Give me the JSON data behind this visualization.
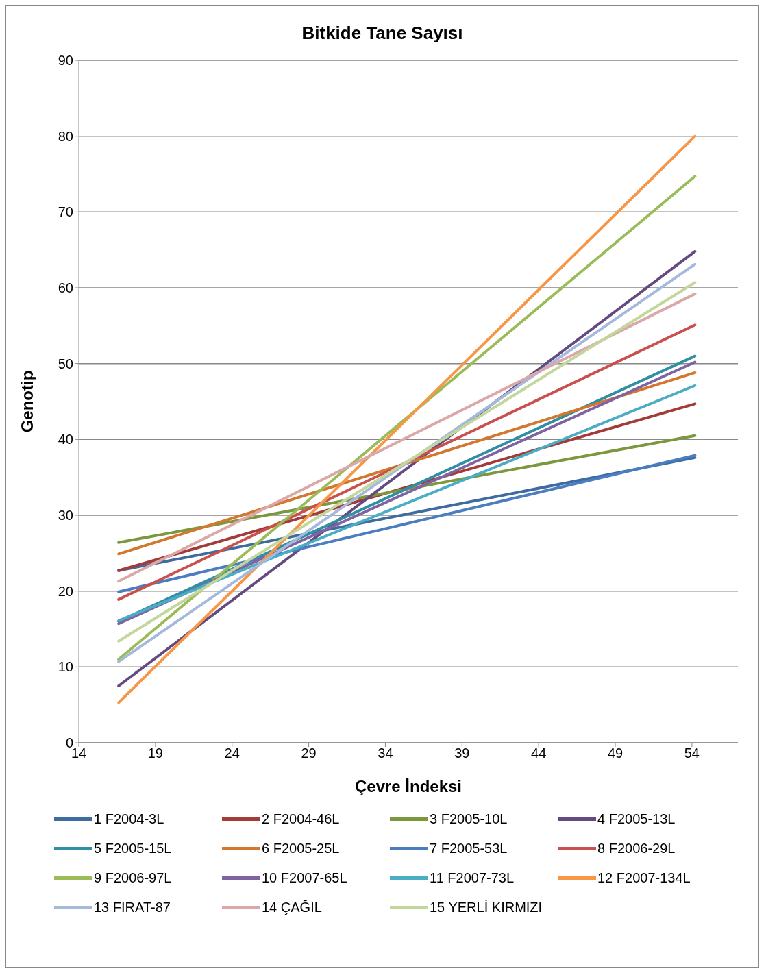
{
  "chart_data": {
    "type": "line",
    "title": "Bitkide Tane Sayısı",
    "xlabel": "Çevre İndeksi",
    "ylabel": "Genotip",
    "x": [
      16.6,
      54.2
    ],
    "xlim": [
      14,
      57
    ],
    "xticks": [
      14,
      19,
      24,
      29,
      34,
      39,
      44,
      49,
      54
    ],
    "ylim": [
      0,
      90
    ],
    "yticks": [
      0,
      10,
      20,
      30,
      40,
      50,
      60,
      70,
      80,
      90
    ],
    "grid": "y",
    "legend": "bottom",
    "marker": "none",
    "line_style": "solid",
    "series": [
      {
        "name": "1 F2004-3L",
        "color": "#3e6ba0",
        "values": [
          22.7,
          37.6
        ]
      },
      {
        "name": "2 F2004-46L",
        "color": "#a33b38",
        "values": [
          22.7,
          44.7
        ]
      },
      {
        "name": "3 F2005-10L",
        "color": "#7b983e",
        "values": [
          26.4,
          40.5
        ]
      },
      {
        "name": "4 F2005-13L",
        "color": "#644a80",
        "values": [
          7.5,
          64.8
        ]
      },
      {
        "name": "5 F2005-15L",
        "color": "#2f8fa3",
        "values": [
          16.0,
          51.0
        ]
      },
      {
        "name": "6 F2005-25L",
        "color": "#d2782f",
        "values": [
          24.9,
          48.8
        ]
      },
      {
        "name": "7 F2005-53L",
        "color": "#4a7ec1",
        "values": [
          19.9,
          37.9
        ]
      },
      {
        "name": "8 F2006-29L",
        "color": "#c9504d",
        "values": [
          18.9,
          55.1
        ]
      },
      {
        "name": "9 F2006-97L",
        "color": "#9bbb59",
        "values": [
          11.0,
          74.7
        ]
      },
      {
        "name": "10 F2007-65L",
        "color": "#8064a2",
        "values": [
          15.7,
          50.2
        ]
      },
      {
        "name": "11 F2007-73L",
        "color": "#4bacc6",
        "values": [
          16.1,
          47.1
        ]
      },
      {
        "name": "12 F2007-134L",
        "color": "#f79646",
        "values": [
          5.3,
          80.0
        ]
      },
      {
        "name": "13 FIRAT-87",
        "color": "#a5b9dd",
        "values": [
          10.7,
          63.1
        ]
      },
      {
        "name": "14 ÇAĞIL",
        "color": "#dba8a7",
        "values": [
          21.3,
          59.2
        ]
      },
      {
        "name": "15 YERLİ KIRMIZI",
        "color": "#c3d69b",
        "values": [
          13.4,
          60.7
        ]
      }
    ]
  }
}
